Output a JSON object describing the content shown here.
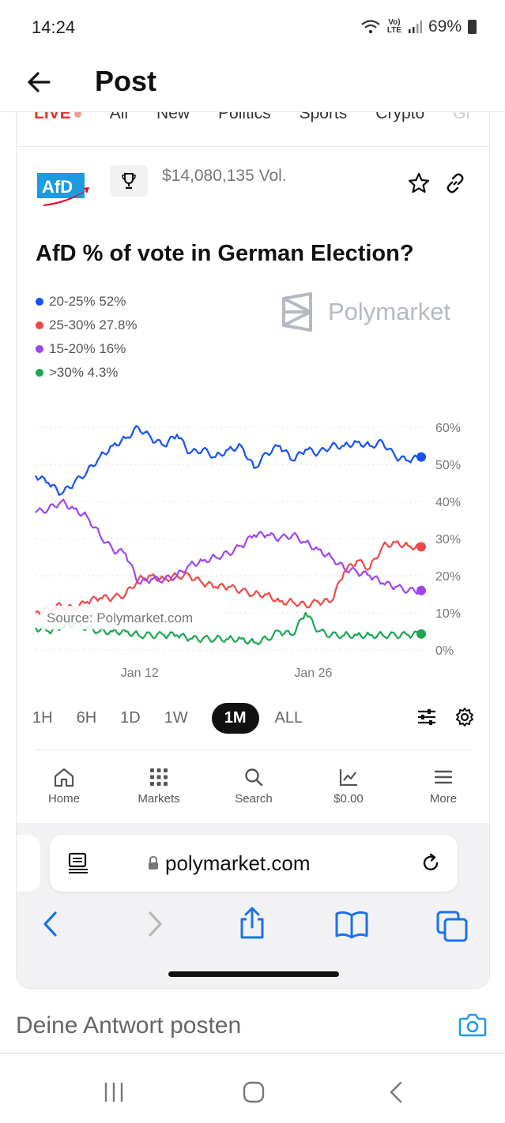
{
  "status": {
    "time": "14:24",
    "net": "Vo)",
    "lte": "LTE",
    "battery": "69%"
  },
  "header": {
    "title": "Post"
  },
  "categories": {
    "live": "LIVE",
    "items": [
      "All",
      "New",
      "Politics",
      "Sports",
      "Crypto",
      "Gl"
    ]
  },
  "market": {
    "volume": "$14,080,135 Vol.",
    "title": "AfD % of vote in German Election?",
    "logo_text": "AfD",
    "brand": "Polymarket",
    "outcomes": [
      {
        "label": "20-25% 52%",
        "color": "#1652f0"
      },
      {
        "label": "25-30% 27.8%",
        "color": "#f04848"
      },
      {
        "label": "15-20% 16%",
        "color": "#a044f0"
      },
      {
        "label": ">30% 4.3%",
        "color": "#19a851"
      }
    ]
  },
  "chart_data": {
    "type": "line",
    "source_label": "Source: Polymarket.com",
    "y_ticks": [
      "60%",
      "50%",
      "40%",
      "30%",
      "20%",
      "10%",
      "0%"
    ],
    "ylim": [
      0,
      60
    ],
    "x_ticks": [
      "Jan 12",
      "Jan 26"
    ],
    "x": [
      0,
      1,
      2,
      3,
      4,
      5,
      6,
      7,
      8,
      9,
      10,
      11,
      12,
      13,
      14,
      15,
      16,
      17,
      18,
      19,
      20,
      21,
      22,
      23,
      24,
      25,
      26,
      27,
      28,
      29,
      30
    ],
    "series": [
      {
        "name": "20-25%",
        "color": "#1652f0",
        "values": [
          47,
          45,
          42,
          45,
          48,
          52,
          55,
          57,
          60,
          57,
          55,
          58,
          53,
          54,
          52,
          54,
          55,
          49,
          53,
          55,
          51,
          54,
          53,
          55,
          55,
          56,
          55,
          56,
          52,
          51,
          52
        ]
      },
      {
        "name": "25-30%",
        "color": "#f04848",
        "values": [
          10,
          11,
          12,
          11,
          13,
          14,
          14,
          15,
          19,
          20,
          19,
          20,
          20,
          18,
          17,
          17,
          16,
          15,
          15,
          13,
          13,
          12,
          13,
          13,
          21,
          24,
          22,
          28,
          29,
          28,
          27.8
        ]
      },
      {
        "name": "15-20%",
        "color": "#a044f0",
        "values": [
          37,
          38,
          40,
          38,
          36,
          31,
          27,
          26,
          18,
          19,
          19,
          20,
          23,
          24,
          25,
          26,
          28,
          31,
          31,
          30,
          31,
          29,
          27,
          25,
          22,
          21,
          20,
          18,
          17,
          16,
          16
        ]
      },
      {
        "name": ">30%",
        "color": "#19a851",
        "values": [
          6,
          5,
          6,
          7,
          6,
          5,
          5,
          5,
          4,
          4,
          4,
          4,
          3,
          3,
          3,
          3,
          3,
          2,
          3,
          5,
          4,
          10,
          5,
          4,
          4,
          4,
          4,
          4,
          4,
          4,
          4.3
        ]
      }
    ]
  },
  "timeframes": [
    "1H",
    "6H",
    "1D",
    "1W",
    "1M",
    "ALL"
  ],
  "active_timeframe": "1M",
  "nav": [
    "Home",
    "Markets",
    "Search",
    "$0.00",
    "More"
  ],
  "browser": {
    "url": "polymarket.com"
  },
  "reply": {
    "placeholder": "Deine Antwort posten"
  }
}
